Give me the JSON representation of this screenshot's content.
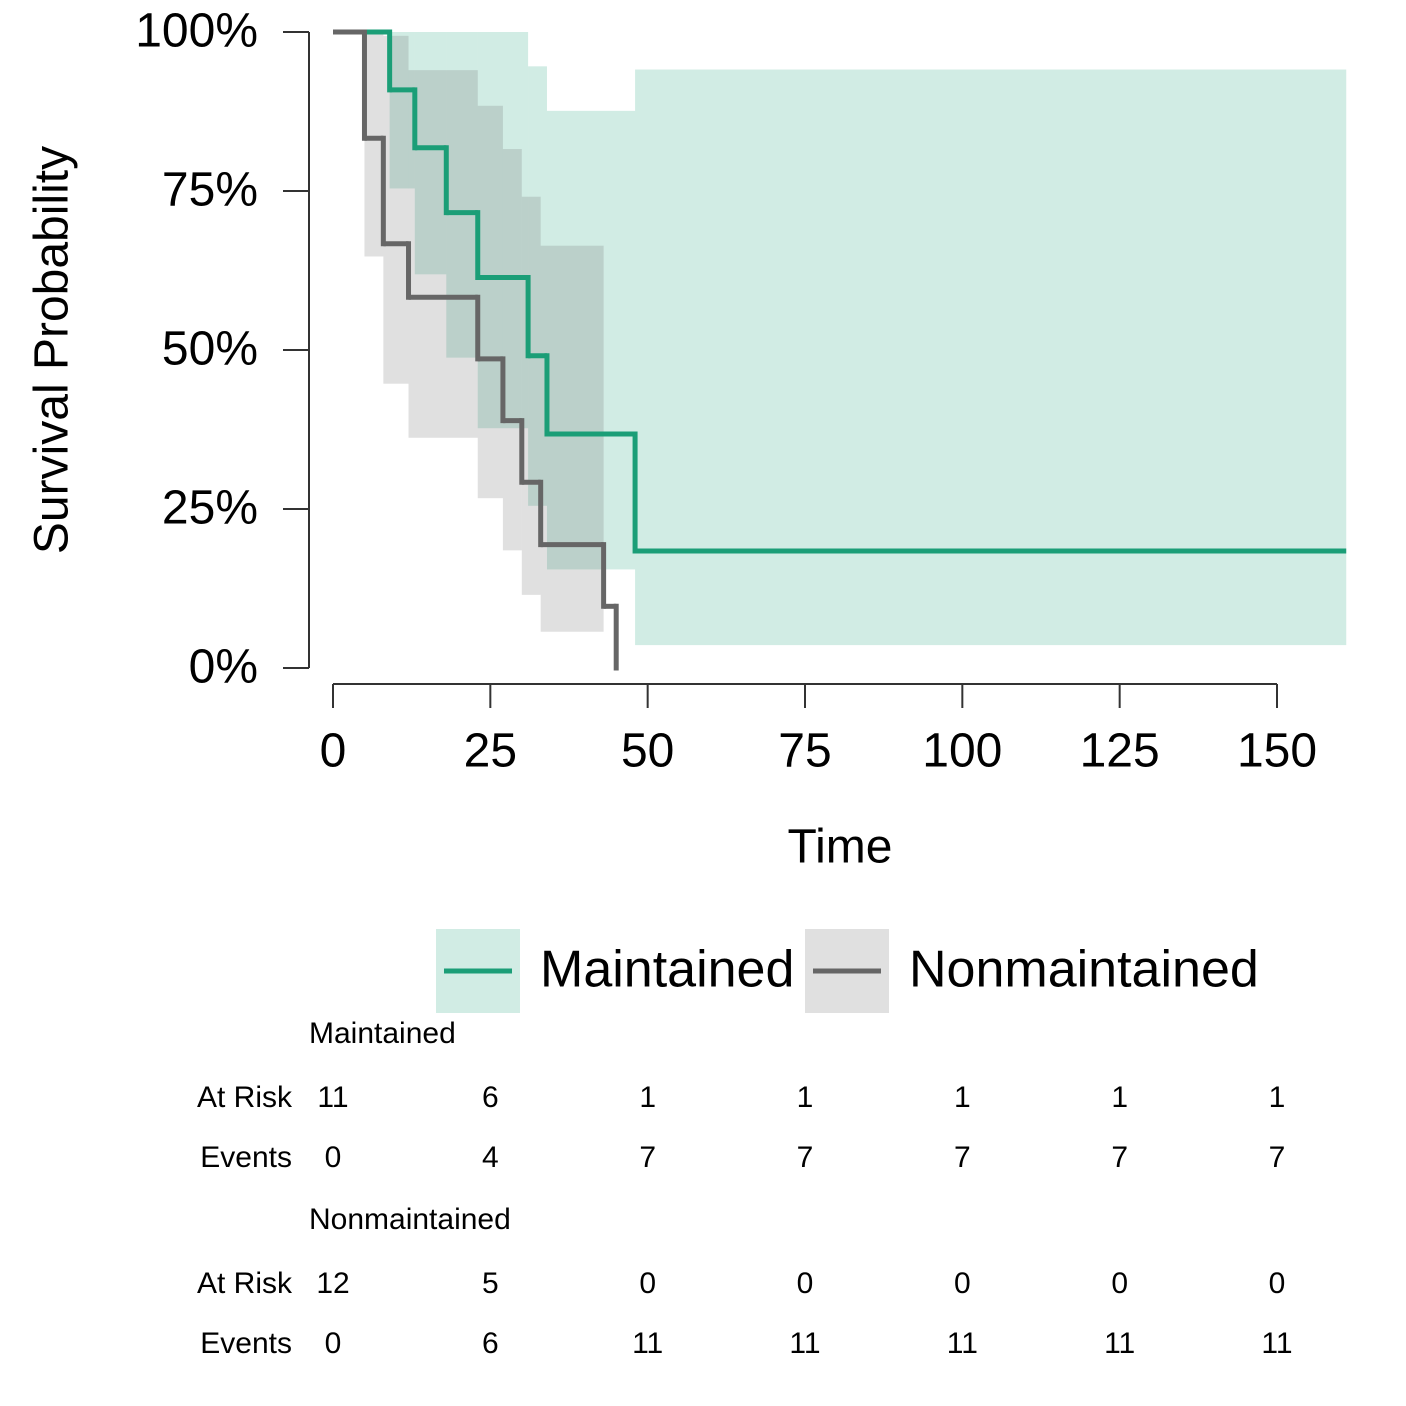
{
  "chart_data": {
    "type": "survival",
    "y_label": "Survival Probability",
    "x_label": "Time",
    "xlim": [
      0,
      150
    ],
    "xticks": [
      0,
      25,
      50,
      75,
      100,
      125,
      150
    ],
    "ylim": [
      0,
      100
    ],
    "yticks": [
      {
        "value": 0,
        "label": "0%"
      },
      {
        "value": 25,
        "label": "25%"
      },
      {
        "value": 50,
        "label": "50%"
      },
      {
        "value": 75,
        "label": "75%"
      },
      {
        "value": 100,
        "label": "100%"
      }
    ],
    "series": [
      {
        "name": "Maintained",
        "color": "#1b9e77",
        "x": [
          0,
          9,
          13,
          18,
          23,
          31,
          34,
          48,
          161
        ],
        "values": [
          100,
          90.9,
          81.8,
          71.6,
          61.4,
          49.1,
          36.8,
          18.4,
          18.4
        ],
        "lower": [
          100,
          75.4,
          61.9,
          48.8,
          37.7,
          25.5,
          15.5,
          3.6,
          null
        ],
        "upper": [
          100,
          100,
          100,
          100,
          100,
          94.6,
          87.6,
          94.1,
          null
        ]
      },
      {
        "name": "Nonmaintained",
        "color": "#666666",
        "x": [
          0,
          5,
          8,
          12,
          23,
          27,
          30,
          33,
          43,
          45
        ],
        "values": [
          100,
          83.3,
          66.7,
          58.3,
          48.6,
          38.9,
          29.2,
          19.4,
          9.7,
          0
        ],
        "lower": [
          100,
          64.7,
          44.7,
          36.2,
          26.7,
          18.5,
          11.5,
          5.7,
          null,
          null
        ],
        "upper": [
          100,
          100,
          99.4,
          94.0,
          88.4,
          81.6,
          74.1,
          66.4,
          null,
          null
        ]
      }
    ],
    "risk_table": {
      "row_labels": [
        "At Risk",
        "Events"
      ],
      "groups": [
        {
          "at_risk": [
            11,
            6,
            1,
            1,
            1,
            1,
            1
          ],
          "events": [
            0,
            4,
            7,
            7,
            7,
            7,
            7
          ]
        },
        {
          "at_risk": [
            12,
            5,
            0,
            0,
            0,
            0,
            0
          ],
          "events": [
            0,
            6,
            11,
            11,
            11,
            11,
            11
          ]
        }
      ]
    }
  }
}
